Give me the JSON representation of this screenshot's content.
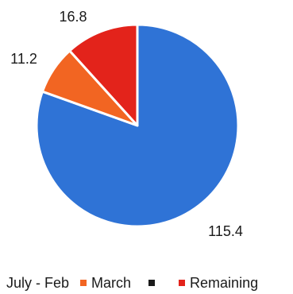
{
  "chart_data": {
    "type": "pie",
    "slices": [
      {
        "label": "July - Feb",
        "value": 115.4,
        "data_label": "115.4",
        "color": "#2f73d6"
      },
      {
        "label": "March",
        "value": 11.2,
        "data_label": "11.2",
        "color": "#f26522"
      },
      {
        "label": "Remaining",
        "value": 16.8,
        "data_label": "16.8",
        "color": "#e3231b"
      }
    ],
    "extra_legend_marker_color": "#1a1a1a",
    "legend_placement": "bottom"
  }
}
